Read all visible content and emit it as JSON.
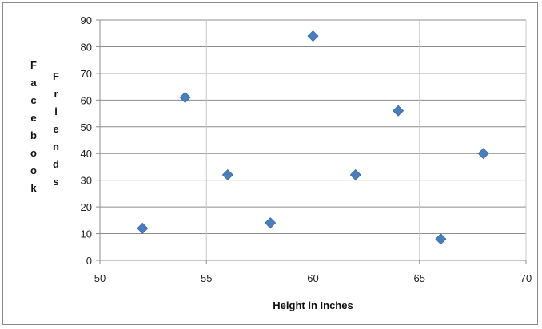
{
  "chart_data": {
    "type": "scatter",
    "title": "",
    "xlabel": "Height in Inches",
    "ylabel_words": [
      "Facebook",
      "Friends"
    ],
    "xlim": [
      50,
      70
    ],
    "ylim": [
      0,
      90
    ],
    "x_ticks": [
      "50",
      "55",
      "60",
      "65",
      "70"
    ],
    "y_ticks": [
      "0",
      "10",
      "20",
      "30",
      "40",
      "50",
      "60",
      "70",
      "80",
      "90"
    ],
    "grid": true,
    "legend": "none",
    "marker": "diamond",
    "marker_color": "#4a7ebb",
    "points": [
      {
        "x": 52,
        "y": 12
      },
      {
        "x": 54,
        "y": 61
      },
      {
        "x": 56,
        "y": 32
      },
      {
        "x": 58,
        "y": 14
      },
      {
        "x": 60,
        "y": 84
      },
      {
        "x": 62,
        "y": 32
      },
      {
        "x": 64,
        "y": 56
      },
      {
        "x": 66,
        "y": 8
      },
      {
        "x": 68,
        "y": 40
      }
    ]
  }
}
